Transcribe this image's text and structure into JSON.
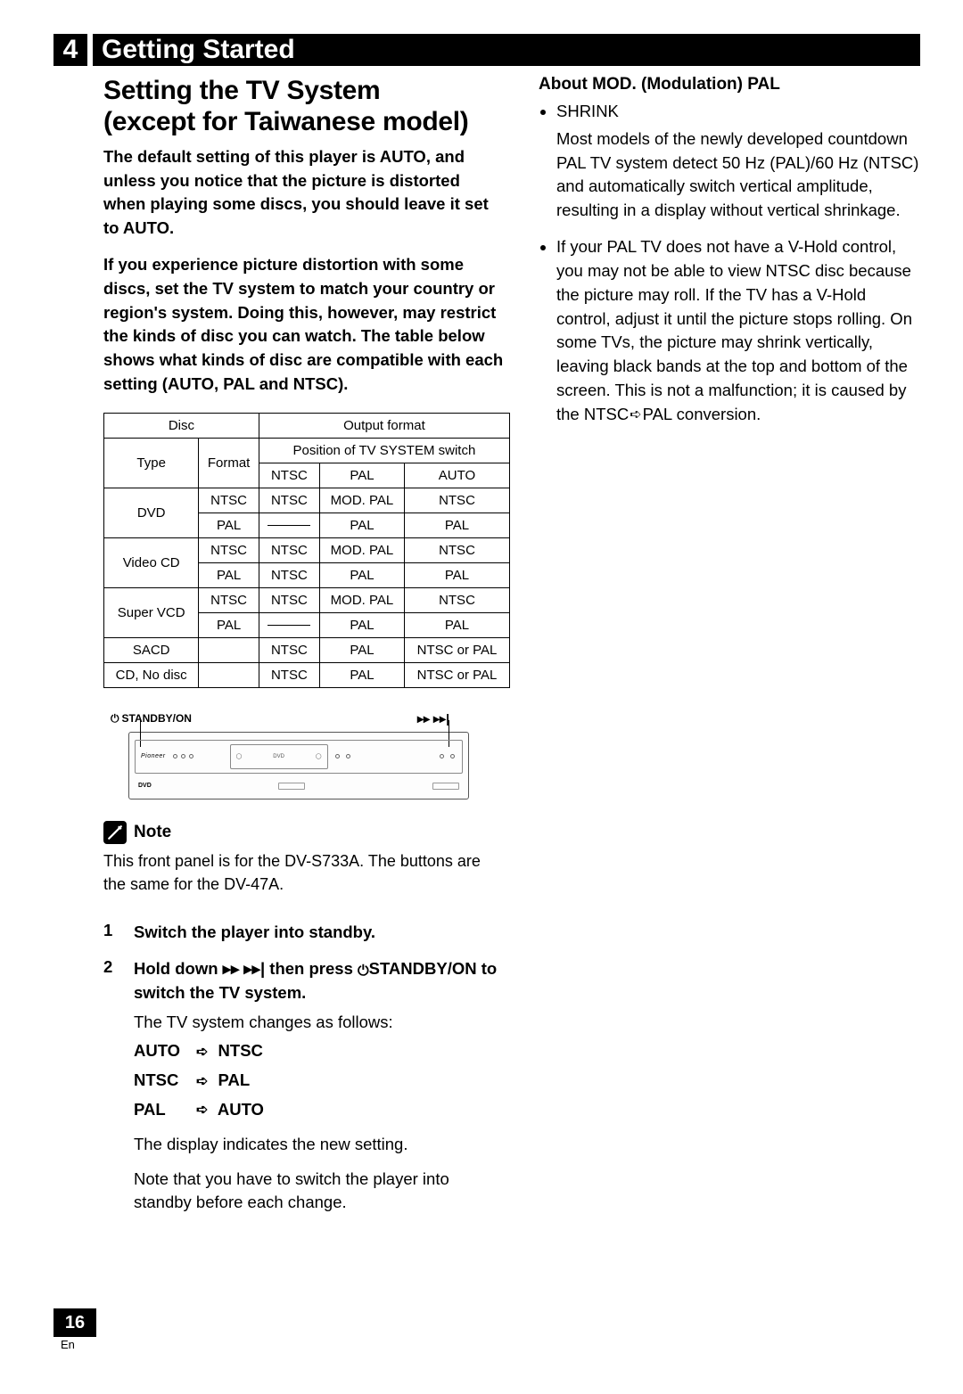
{
  "section": {
    "num": "4",
    "title": "Getting Started"
  },
  "left": {
    "heading1": "Setting the TV System",
    "heading2": "(except for Taiwanese model)",
    "intro1": "The default setting of this player is AUTO, and unless you notice that the picture is distorted when playing some discs, you should leave it set to AUTO.",
    "intro2_a": "If you experience picture distortion with some discs, set the TV system to match your country or region's system. Doing this, however, may restrict the kinds of disc you can watch. The table below shows what kinds of disc are compatible with each setting ",
    "intro2_b": "(AUTO, PAL and NTSC)",
    "intro2_c": ".",
    "table": {
      "head_disc": "Disc",
      "head_output": "Output format",
      "head_type": "Type",
      "head_format": "Format",
      "head_pos": "Position of TV SYSTEM switch",
      "cols": [
        "NTSC",
        "PAL",
        "AUTO"
      ],
      "rows": [
        {
          "type": "DVD",
          "rowspan": 2,
          "fmt": "NTSC",
          "c": [
            "NTSC",
            "MOD. PAL",
            "NTSC"
          ]
        },
        {
          "fmt": "PAL",
          "c": [
            "DASH",
            "PAL",
            "PAL"
          ]
        },
        {
          "type": "Video CD",
          "rowspan": 2,
          "fmt": "NTSC",
          "c": [
            "NTSC",
            "MOD. PAL",
            "NTSC"
          ]
        },
        {
          "fmt": "PAL",
          "c": [
            "NTSC",
            "PAL",
            "PAL"
          ]
        },
        {
          "type": "Super VCD",
          "rowspan": 2,
          "fmt": "NTSC",
          "c": [
            "NTSC",
            "MOD. PAL",
            "NTSC"
          ]
        },
        {
          "fmt": "PAL",
          "c": [
            "DASH",
            "PAL",
            "PAL"
          ]
        },
        {
          "type": "SACD",
          "rowspan": 1,
          "fmt": "",
          "c": [
            "NTSC",
            "PAL",
            "NTSC or PAL"
          ]
        },
        {
          "type": "CD, No disc",
          "rowspan": 1,
          "fmt": "",
          "c": [
            "NTSC",
            "PAL",
            "NTSC or PAL"
          ]
        }
      ]
    },
    "standby_label_left": "STANDBY/ON",
    "note_label": "Note",
    "note_body": "This front panel is for the DV-S733A. The buttons are the same for the DV-47A.",
    "steps": [
      {
        "n": "1",
        "bold": "Switch the player into standby.",
        "after": ""
      },
      {
        "n": "2",
        "bold_a": "Hold down ",
        "bold_b": " then press ",
        "bold_c": "STANDBY/ON to switch the TV system.",
        "after1": "The TV system changes as follows:",
        "cycle": [
          {
            "from": "AUTO",
            "to": "NTSC"
          },
          {
            "from": "NTSC",
            "to": "PAL"
          },
          {
            "from": "PAL",
            "to": "AUTO"
          }
        ],
        "after2": "The display indicates the new setting.",
        "after3": "Note that you have to switch the player into standby before each change."
      }
    ]
  },
  "right": {
    "heading": "About MOD. (Modulation) PAL",
    "bullet1_lead": "SHRINK",
    "bullet1_body": "Most models of the newly developed countdown PAL TV system detect 50 Hz (PAL)/60 Hz (NTSC) and automatically switch vertical amplitude, resulting in a display without vertical shrinkage.",
    "bullet2": "If your PAL TV does not have a V-Hold control, you may not be able to view NTSC disc because the picture may roll. If the TV has a V-Hold control, adjust it until the picture stops rolling. On some TVs, the picture may shrink vertically, leaving black bands at the top and bottom of the screen. This is not a malfunction; it is caused by the NTSC",
    "bullet2_tail": "PAL conversion."
  },
  "footer": {
    "page": "16",
    "lang": "En"
  }
}
